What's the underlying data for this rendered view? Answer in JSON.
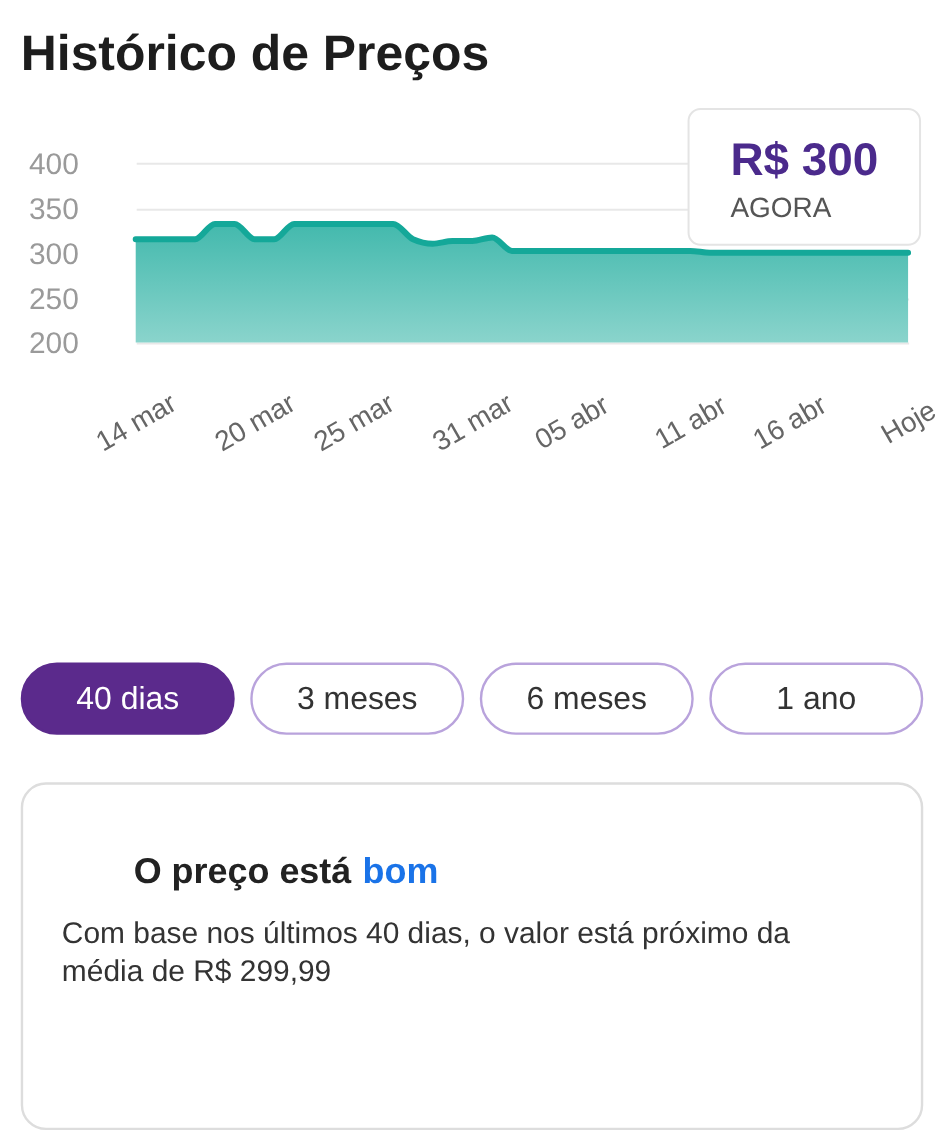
{
  "chart_data": [
    {
      "type": "area",
      "title": "Histórico de Preços",
      "categories": [
        "14 mar",
        null,
        null,
        null,
        null,
        null,
        "20 mar",
        null,
        null,
        null,
        null,
        "25 mar",
        null,
        null,
        null,
        null,
        null,
        "31 mar",
        null,
        null,
        null,
        null,
        "05 abr",
        null,
        null,
        null,
        null,
        null,
        "11 abr",
        null,
        null,
        null,
        null,
        "16 abr",
        null,
        null,
        null,
        null,
        null,
        "Hoje"
      ],
      "series": [
        {
          "color": "#14a899",
          "values": [
            315,
            315,
            315,
            315,
            332,
            332,
            315,
            315,
            332,
            332,
            332,
            332,
            332,
            332,
            315,
            310,
            313,
            313,
            317,
            302,
            302,
            302,
            302,
            302,
            302,
            302,
            302,
            302,
            302,
            300,
            300,
            300,
            300,
            300,
            300,
            300,
            300,
            300,
            300,
            300
          ]
        }
      ],
      "ylim": [
        200,
        400
      ],
      "yticks": [
        200,
        250,
        300,
        350,
        400
      ],
      "grid": "y",
      "annotations": [
        {
          "text": "R$ 300",
          "x": "Hoje",
          "y": 300
        },
        {
          "text": "AGORA",
          "x": "Hoje",
          "y": 300
        }
      ]
    },
    {
      "type": "other",
      "categories": [
        "40 dias",
        "3 meses",
        "6 meses",
        "1 ano"
      ],
      "colors": [
        "#5b2a8c",
        "#ffffff",
        "#ffffff",
        "#ffffff"
      ]
    },
    {
      "type": "other",
      "title": "O preço está bom",
      "annotations": [
        "Com base nos últimos 40 dias, o valor está próximo da média de R$ 299,99"
      ]
    }
  ]
}
